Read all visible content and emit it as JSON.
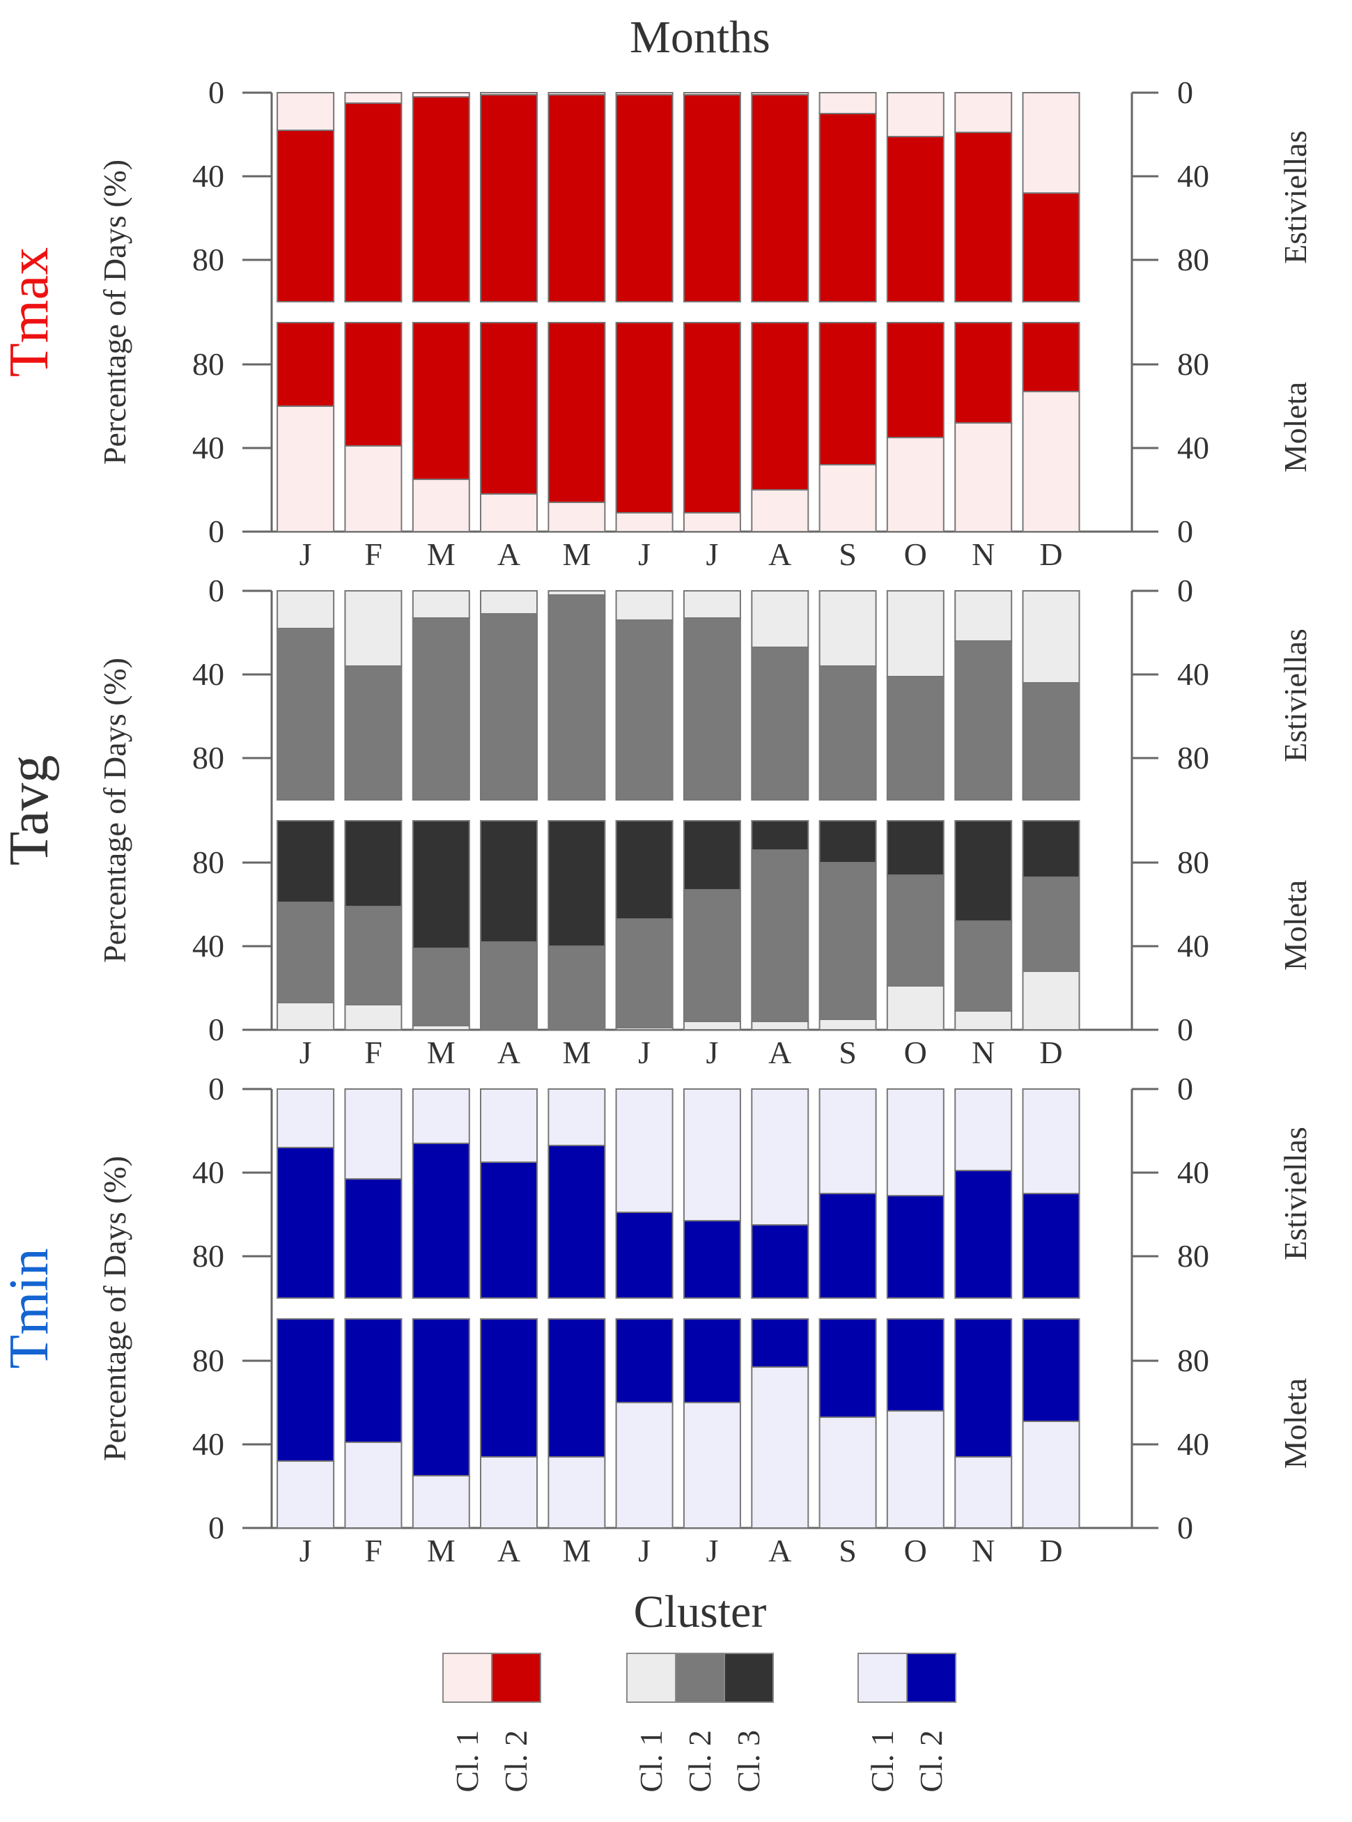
{
  "chart_data": {
    "type": "bar",
    "subtype": "stacked-percentage",
    "title": "Months",
    "categories": [
      "J",
      "F",
      "M",
      "A",
      "M",
      "J",
      "J",
      "A",
      "S",
      "O",
      "N",
      "D"
    ],
    "ylabel": "Percentage of Days (%)",
    "ylim": [
      0,
      100
    ],
    "left_ticks_top": [
      "0",
      "40",
      "80"
    ],
    "left_ticks_bottom": [
      "80",
      "40",
      "0"
    ],
    "right_ticks_top": [
      "0",
      "40",
      "80"
    ],
    "right_ticks_bottom": [
      "80",
      "40",
      "0"
    ],
    "legend_title": "Cluster",
    "panels": [
      {
        "variable": "Tmax",
        "variable_color": "#ee1111",
        "cluster_colors": [
          "#fdecec",
          "#cc0000"
        ],
        "stations": [
          {
            "name": "Estiviellas",
            "orientation": "top-down",
            "series": [
              {
                "name": "Cl. 1",
                "values": [
                  18,
                  5,
                  2,
                  1,
                  1,
                  1,
                  1,
                  1,
                  10,
                  21,
                  19,
                  48
                ]
              },
              {
                "name": "Cl. 2",
                "values": [
                  82,
                  95,
                  98,
                  99,
                  99,
                  99,
                  99,
                  99,
                  90,
                  79,
                  81,
                  52
                ]
              }
            ]
          },
          {
            "name": "Moleta",
            "orientation": "bottom-up",
            "series": [
              {
                "name": "Cl. 1",
                "values": [
                  60,
                  41,
                  25,
                  18,
                  14,
                  9,
                  9,
                  20,
                  32,
                  45,
                  52,
                  67
                ]
              },
              {
                "name": "Cl. 2",
                "values": [
                  40,
                  59,
                  75,
                  82,
                  86,
                  91,
                  91,
                  80,
                  68,
                  55,
                  48,
                  33
                ]
              }
            ]
          }
        ],
        "legend_labels": [
          "Cl. 1",
          "Cl. 2"
        ]
      },
      {
        "variable": "Tavg",
        "variable_color": "#333333",
        "cluster_colors": [
          "#ececec",
          "#7a7a7a",
          "#333333"
        ],
        "stations": [
          {
            "name": "Estiviellas",
            "orientation": "top-down",
            "series": [
              {
                "name": "Cl. 1",
                "values": [
                  18,
                  36,
                  13,
                  11,
                  2,
                  14,
                  13,
                  27,
                  36,
                  41,
                  24,
                  44
                ]
              },
              {
                "name": "Cl. 2",
                "values": [
                  82,
                  64,
                  87,
                  89,
                  98,
                  86,
                  87,
                  73,
                  64,
                  59,
                  76,
                  56
                ]
              }
            ]
          },
          {
            "name": "Moleta",
            "orientation": "bottom-up",
            "series": [
              {
                "name": "Cl. 1",
                "values": [
                  13,
                  12,
                  2,
                  0,
                  0,
                  1,
                  4,
                  4,
                  5,
                  21,
                  9,
                  28
                ]
              },
              {
                "name": "Cl. 2",
                "values": [
                  48,
                  47,
                  37,
                  42,
                  40,
                  52,
                  63,
                  82,
                  75,
                  53,
                  43,
                  45
                ]
              },
              {
                "name": "Cl. 3",
                "values": [
                  39,
                  41,
                  61,
                  58,
                  60,
                  47,
                  33,
                  14,
                  20,
                  26,
                  48,
                  27
                ]
              }
            ]
          }
        ],
        "legend_labels": [
          "Cl. 1",
          "Cl. 2",
          "Cl. 3"
        ]
      },
      {
        "variable": "Tmin",
        "variable_color": "#1464d2",
        "cluster_colors": [
          "#eeeefa",
          "#0000aa"
        ],
        "stations": [
          {
            "name": "Estiviellas",
            "orientation": "top-down",
            "series": [
              {
                "name": "Cl. 1",
                "values": [
                  28,
                  43,
                  26,
                  35,
                  27,
                  59,
                  63,
                  65,
                  50,
                  51,
                  39,
                  50
                ]
              },
              {
                "name": "Cl. 2",
                "values": [
                  72,
                  57,
                  74,
                  65,
                  73,
                  41,
                  37,
                  35,
                  50,
                  49,
                  61,
                  50
                ]
              }
            ]
          },
          {
            "name": "Moleta",
            "orientation": "bottom-up",
            "series": [
              {
                "name": "Cl. 1",
                "values": [
                  32,
                  41,
                  25,
                  34,
                  34,
                  60,
                  60,
                  77,
                  53,
                  56,
                  34,
                  51
                ]
              },
              {
                "name": "Cl. 2",
                "values": [
                  68,
                  59,
                  75,
                  66,
                  66,
                  40,
                  40,
                  23,
                  47,
                  44,
                  66,
                  49
                ]
              }
            ]
          }
        ],
        "legend_labels": [
          "Cl. 1",
          "Cl. 2"
        ]
      }
    ]
  }
}
